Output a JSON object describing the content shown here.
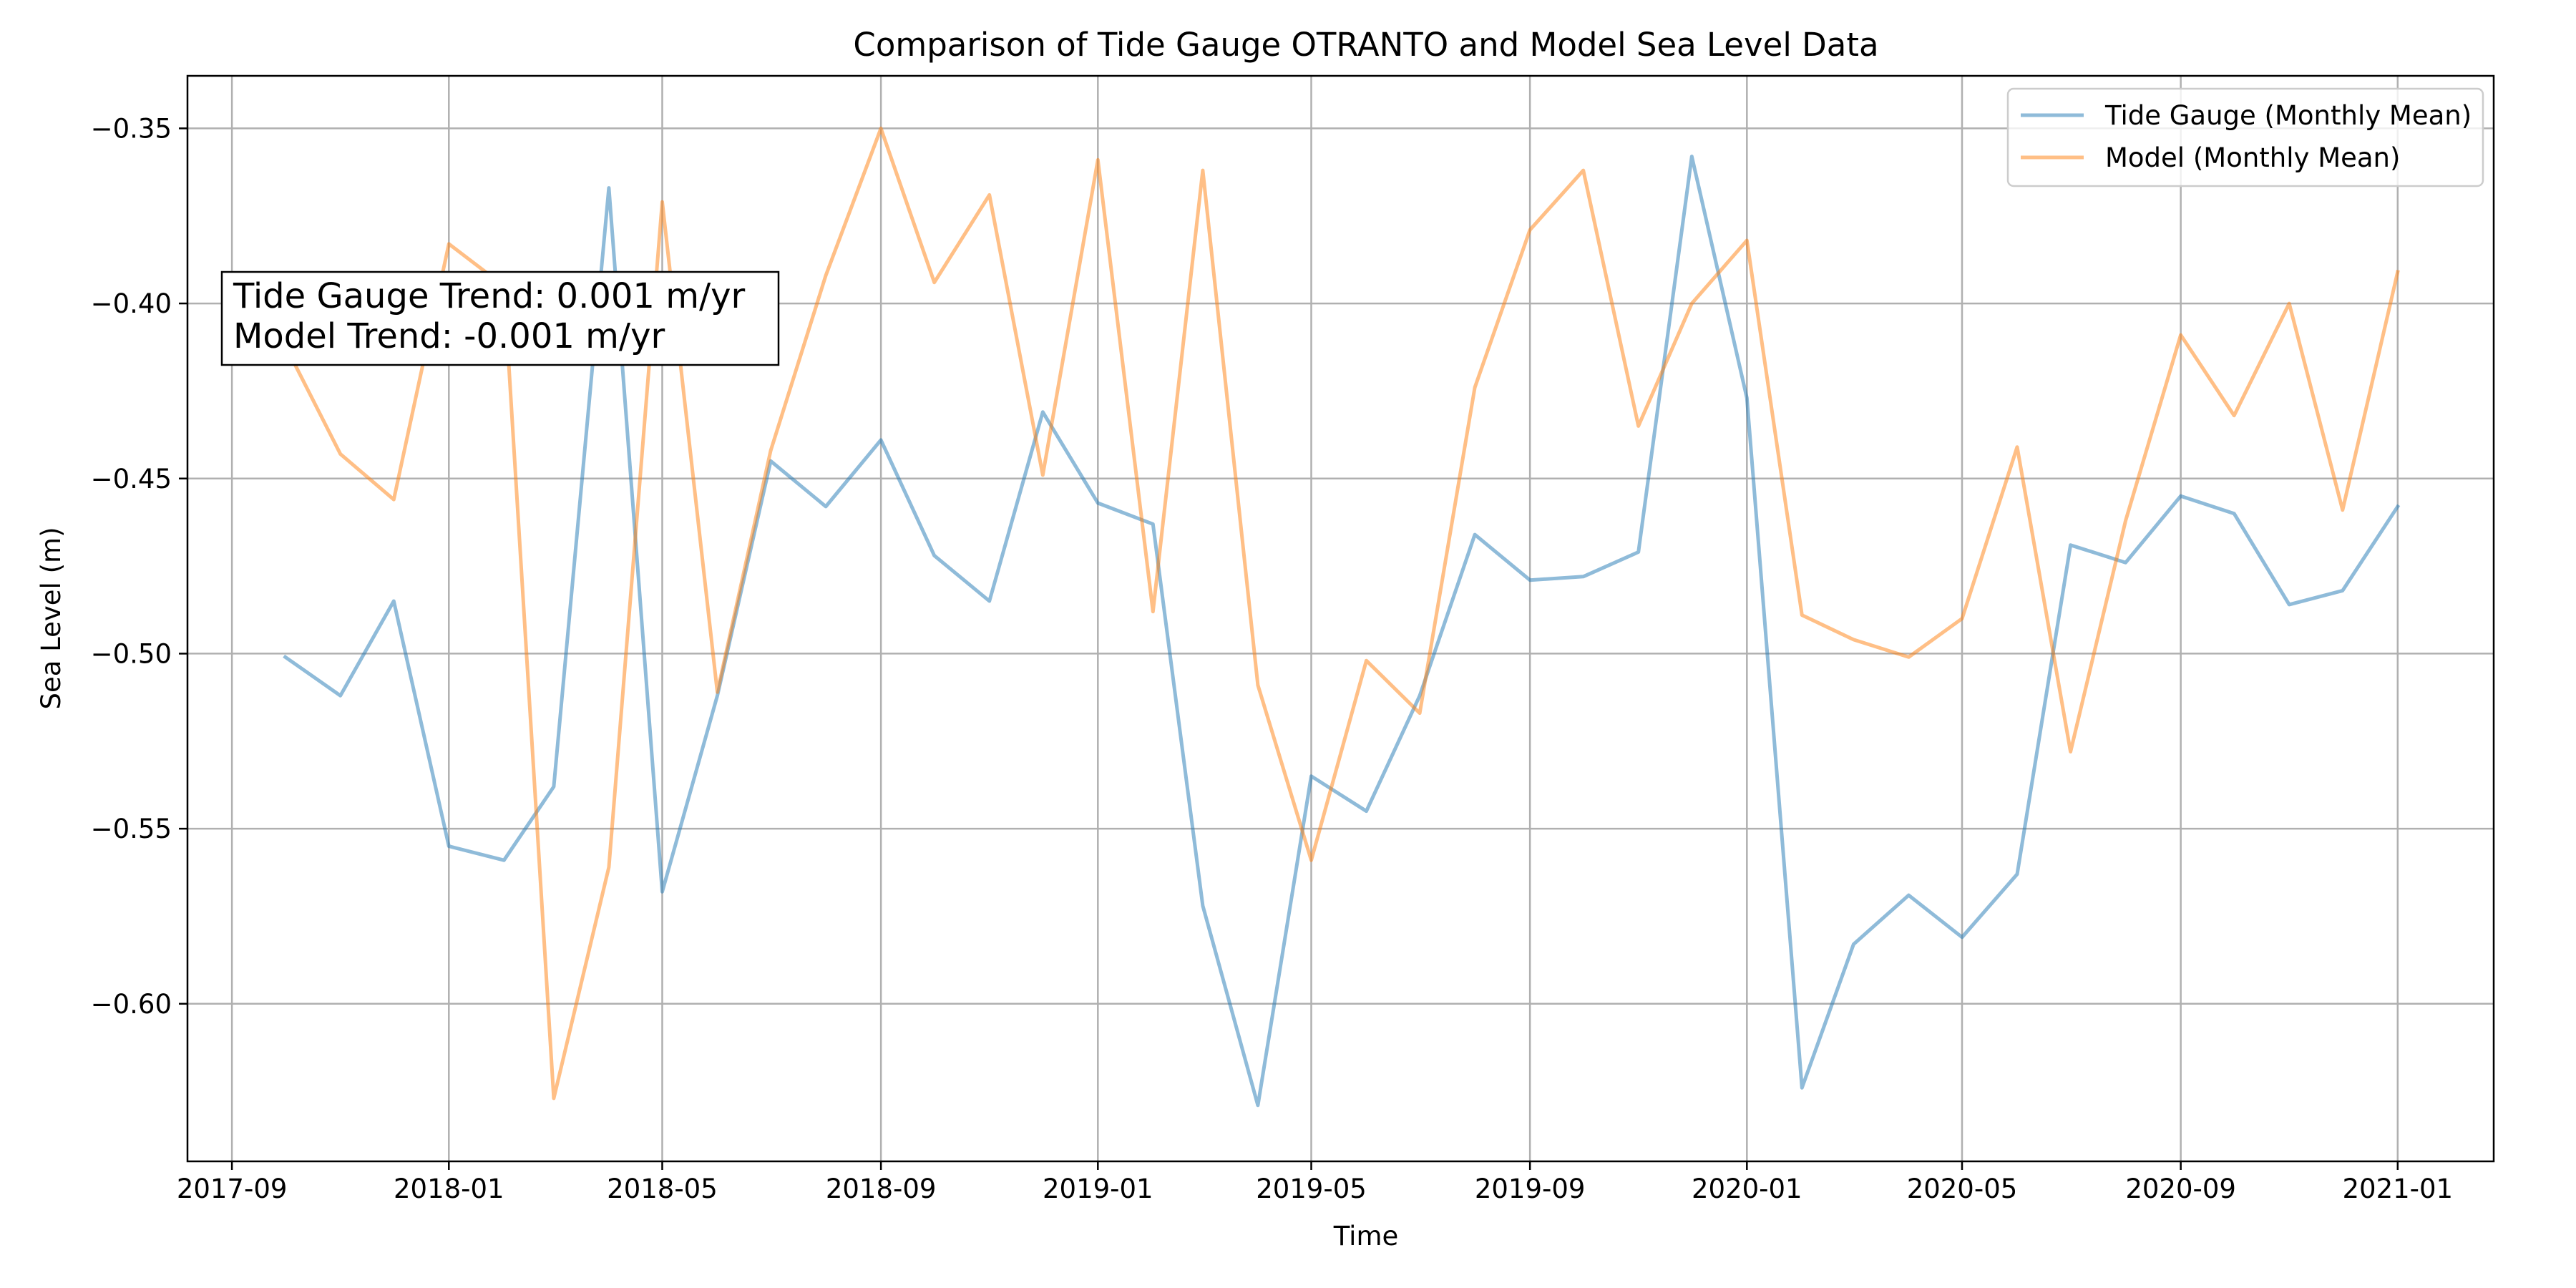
{
  "chart_data": {
    "type": "line",
    "title": "Comparison of Tide Gauge OTRANTO and Model Sea Level Data",
    "xlabel": "Time",
    "ylabel": "Sea Level (m)",
    "x": [
      "2017-10",
      "2017-11",
      "2017-12",
      "2018-01",
      "2018-02",
      "2018-03",
      "2018-04",
      "2018-05",
      "2018-06",
      "2018-07",
      "2018-08",
      "2018-09",
      "2018-10",
      "2018-11",
      "2018-12",
      "2019-01",
      "2019-02",
      "2019-03",
      "2019-04",
      "2019-05",
      "2019-06",
      "2019-07",
      "2019-08",
      "2019-09",
      "2019-10",
      "2019-11",
      "2019-12",
      "2020-01",
      "2020-02",
      "2020-03",
      "2020-04",
      "2020-05",
      "2020-06",
      "2020-07",
      "2020-08",
      "2020-09",
      "2020-10",
      "2020-11",
      "2020-12",
      "2021-01"
    ],
    "x_ticks": [
      "2017-09",
      "2018-01",
      "2018-05",
      "2018-09",
      "2019-01",
      "2019-05",
      "2019-09",
      "2020-01",
      "2020-05",
      "2020-09",
      "2021-01"
    ],
    "xlim": [
      "2017-08-07",
      "2021-02-24"
    ],
    "ylim": [
      -0.645,
      -0.335
    ],
    "y_ticks": [
      -0.35,
      -0.4,
      -0.45,
      -0.5,
      -0.55,
      -0.6
    ],
    "y_tick_labels": [
      "−0.35",
      "−0.40",
      "−0.45",
      "−0.50",
      "−0.55",
      "−0.60"
    ],
    "grid": true,
    "legend": "top-right",
    "series": [
      {
        "name": "Tide Gauge (Monthly Mean)",
        "color": "#1f77b4",
        "values": [
          -0.501,
          -0.512,
          -0.485,
          -0.555,
          -0.559,
          -0.538,
          -0.367,
          -0.568,
          -0.512,
          -0.445,
          -0.458,
          -0.439,
          -0.472,
          -0.485,
          -0.431,
          -0.457,
          -0.463,
          -0.572,
          -0.629,
          -0.535,
          -0.545,
          -0.512,
          -0.466,
          -0.479,
          -0.478,
          -0.471,
          -0.358,
          -0.427,
          -0.624,
          -0.583,
          -0.569,
          -0.581,
          -0.563,
          -0.469,
          -0.474,
          -0.455,
          -0.46,
          -0.486,
          -0.482,
          -0.458
        ]
      },
      {
        "name": "Model (Monthly Mean)",
        "color": "#ff7f0e",
        "values": [
          -0.412,
          -0.443,
          -0.456,
          -0.383,
          -0.395,
          -0.627,
          -0.561,
          -0.371,
          -0.511,
          -0.442,
          -0.392,
          -0.35,
          -0.394,
          -0.369,
          -0.449,
          -0.359,
          -0.488,
          -0.362,
          -0.509,
          -0.559,
          -0.502,
          -0.517,
          -0.424,
          -0.379,
          -0.362,
          -0.435,
          -0.4,
          -0.382,
          -0.489,
          -0.496,
          -0.501,
          -0.49,
          -0.441,
          -0.528,
          -0.462,
          -0.409,
          -0.432,
          -0.4,
          -0.459,
          -0.391
        ]
      }
    ],
    "annotation": {
      "line1": "Tide Gauge Trend: 0.001 m/yr",
      "line2": "Model Trend: -0.001 m/yr"
    }
  }
}
